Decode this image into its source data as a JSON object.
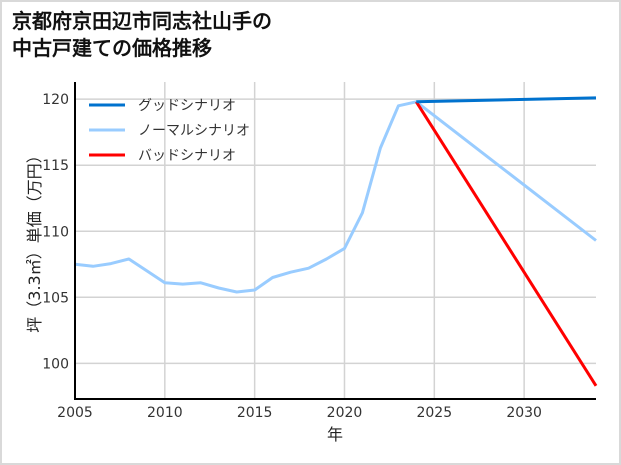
{
  "title_lines": [
    "京都府京田辺市同志社山手の",
    "中古戸建ての価格推移"
  ],
  "chart_data": {
    "type": "line",
    "title": "京都府京田辺市同志社山手の中古戸建ての価格推移",
    "xlabel": "年",
    "ylabel": "坪（3.3㎡）単価（万円）",
    "xlim": [
      2005,
      2034
    ],
    "ylim": [
      97.3,
      121.3
    ],
    "xticks": [
      2005,
      2010,
      2015,
      2020,
      2025,
      2030
    ],
    "yticks": [
      100,
      105,
      110,
      115,
      120
    ],
    "grid": true,
    "legend_position": "upper left",
    "series": [
      {
        "name": "グッドシナリオ",
        "color": "#0072ce",
        "x": [
          2024,
          2034
        ],
        "values": [
          119.8,
          120.1
        ]
      },
      {
        "name": "ノーマルシナリオ",
        "color": "#99ccff",
        "x": [
          2005,
          2006,
          2007,
          2008,
          2009,
          2010,
          2011,
          2012,
          2013,
          2014,
          2015,
          2016,
          2017,
          2018,
          2019,
          2020,
          2021,
          2022,
          2023,
          2024,
          2034
        ],
        "values": [
          107.5,
          107.35,
          107.55,
          107.9,
          107.0,
          106.1,
          106.0,
          106.1,
          105.7,
          105.4,
          105.55,
          106.5,
          106.9,
          107.2,
          107.9,
          108.7,
          111.4,
          116.3,
          119.5,
          119.8,
          109.3
        ]
      },
      {
        "name": "バッドシナリオ",
        "color": "#ff0000",
        "x": [
          2024,
          2034
        ],
        "values": [
          119.8,
          98.3
        ]
      }
    ]
  }
}
